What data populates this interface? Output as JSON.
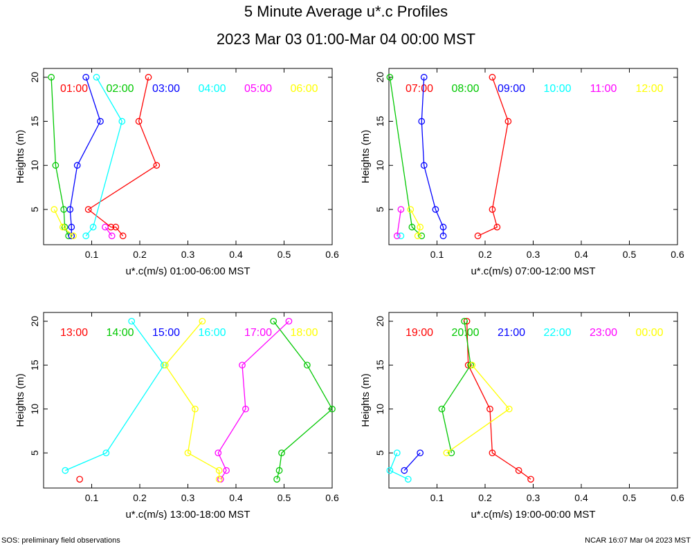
{
  "header": {
    "title": "5 Minute Average u*.c Profiles",
    "subtitle": "2023 Mar 03 01:00-Mar 04 00:00 MST"
  },
  "footer": {
    "left": "SOS: preliminary field observations",
    "right": "NCAR 16:07 Mar 04 2023 MST"
  },
  "colors": [
    "#ff0000",
    "#00c800",
    "#0000ff",
    "#00ffff",
    "#ff00ff",
    "#ffff00"
  ],
  "chart_data": [
    {
      "type": "line",
      "xlabel": "u*.c(m/s) 01:00-06:00 MST",
      "ylabel": "Heights (m)",
      "xlim": [
        0,
        0.6
      ],
      "ylim": [
        1,
        21
      ],
      "xticks": [
        0.1,
        0.2,
        0.3,
        0.4,
        0.5,
        0.6
      ],
      "xtick_labels": [
        "0.1",
        "0.2",
        "0.3",
        "0.4",
        "0.5",
        "0.6"
      ],
      "yticks": [
        5,
        10,
        15,
        20
      ],
      "ytick_labels": [
        "5",
        "10",
        "15",
        "20"
      ],
      "series": [
        {
          "name": "01:00",
          "points": [
            [
              0.165,
              2
            ],
            [
              0.15,
              3
            ],
            [
              0.14,
              3
            ],
            [
              0.093,
              5
            ],
            [
              0.235,
              10
            ],
            [
              0.198,
              15
            ],
            [
              0.218,
              20
            ]
          ]
        },
        {
          "name": "02:00",
          "points": [
            [
              0.052,
              2
            ],
            [
              0.044,
              3
            ],
            [
              0.042,
              5
            ],
            [
              0.025,
              10
            ],
            [
              0.016,
              20
            ]
          ]
        },
        {
          "name": "03:00",
          "points": [
            [
              0.058,
              2
            ],
            [
              0.058,
              3
            ],
            [
              0.055,
              5
            ],
            [
              0.07,
              10
            ],
            [
              0.118,
              15
            ],
            [
              0.088,
              20
            ]
          ]
        },
        {
          "name": "04:00",
          "points": [
            [
              0.088,
              2
            ],
            [
              0.103,
              3
            ],
            [
              0.163,
              15
            ],
            [
              0.11,
              20
            ]
          ]
        },
        {
          "name": "05:00",
          "points": [
            [
              0.142,
              2
            ],
            [
              0.128,
              3
            ]
          ]
        },
        {
          "name": "06:00",
          "points": [
            [
              0.062,
              2
            ],
            [
              0.04,
              3
            ],
            [
              0.022,
              5
            ]
          ]
        }
      ]
    },
    {
      "type": "line",
      "xlabel": "u*.c(m/s) 07:00-12:00 MST",
      "ylabel": "Heights (m)",
      "xlim": [
        0,
        0.6
      ],
      "ylim": [
        1,
        21
      ],
      "xticks": [
        0.1,
        0.2,
        0.3,
        0.4,
        0.5,
        0.6
      ],
      "xtick_labels": [
        "0.1",
        "0.2",
        "0.3",
        "0.4",
        "0.5",
        "0.6"
      ],
      "yticks": [
        5,
        10,
        15,
        20
      ],
      "ytick_labels": [
        "5",
        "10",
        "15",
        "20"
      ],
      "series": [
        {
          "name": "07:00",
          "points": [
            [
              0.185,
              2
            ],
            [
              0.225,
              3
            ],
            [
              0.215,
              5
            ],
            [
              0.248,
              15
            ],
            [
              0.215,
              20
            ]
          ]
        },
        {
          "name": "08:00",
          "points": [
            [
              0.068,
              2
            ],
            [
              0.048,
              3
            ],
            [
              0.002,
              20
            ]
          ]
        },
        {
          "name": "09:00",
          "points": [
            [
              0.113,
              2
            ],
            [
              0.113,
              3
            ],
            [
              0.097,
              5
            ],
            [
              0.073,
              10
            ],
            [
              0.068,
              15
            ],
            [
              0.073,
              20
            ]
          ]
        },
        {
          "name": "10:00",
          "points": [
            [
              0.025,
              2
            ]
          ]
        },
        {
          "name": "11:00",
          "points": [
            [
              0.017,
              2
            ],
            [
              0.025,
              5
            ]
          ]
        },
        {
          "name": "12:00",
          "points": [
            [
              0.06,
              2
            ],
            [
              0.065,
              3
            ],
            [
              0.045,
              5
            ]
          ]
        }
      ]
    },
    {
      "type": "line",
      "xlabel": "u*.c(m/s) 13:00-18:00 MST",
      "ylabel": "Heights (m)",
      "xlim": [
        0,
        0.6
      ],
      "ylim": [
        1,
        21
      ],
      "xticks": [
        0.1,
        0.2,
        0.3,
        0.4,
        0.5,
        0.6
      ],
      "xtick_labels": [
        "0.1",
        "0.2",
        "0.3",
        "0.4",
        "0.5",
        "0.6"
      ],
      "yticks": [
        5,
        10,
        15,
        20
      ],
      "ytick_labels": [
        "5",
        "10",
        "15",
        "20"
      ],
      "series": [
        {
          "name": "13:00",
          "points": [
            [
              0.075,
              2
            ]
          ]
        },
        {
          "name": "14:00",
          "points": [
            [
              0.485,
              2
            ],
            [
              0.49,
              3
            ],
            [
              0.495,
              5
            ],
            [
              0.6,
              10
            ],
            [
              0.548,
              15
            ],
            [
              0.478,
              20
            ]
          ]
        },
        {
          "name": "15:00",
          "points": []
        },
        {
          "name": "16:00",
          "points": [
            [
              0.045,
              3
            ],
            [
              0.13,
              5
            ],
            [
              0.25,
              15
            ],
            [
              0.183,
              20
            ]
          ]
        },
        {
          "name": "17:00",
          "points": [
            [
              0.368,
              2
            ],
            [
              0.38,
              3
            ],
            [
              0.363,
              5
            ],
            [
              0.42,
              10
            ],
            [
              0.413,
              15
            ],
            [
              0.51,
              20
            ]
          ]
        },
        {
          "name": "18:00",
          "points": [
            [
              0.365,
              2
            ],
            [
              0.365,
              3
            ],
            [
              0.3,
              5
            ],
            [
              0.315,
              10
            ],
            [
              0.253,
              15
            ],
            [
              0.33,
              20
            ]
          ]
        }
      ]
    },
    {
      "type": "line",
      "xlabel": "u*.c(m/s) 19:00-00:00 MST",
      "ylabel": "Heights (m)",
      "xlim": [
        0,
        0.6
      ],
      "ylim": [
        1,
        21
      ],
      "xticks": [
        0.1,
        0.2,
        0.3,
        0.4,
        0.5,
        0.6
      ],
      "xtick_labels": [
        "0.1",
        "0.2",
        "0.3",
        "0.4",
        "0.5",
        "0.6"
      ],
      "yticks": [
        5,
        10,
        15,
        20
      ],
      "ytick_labels": [
        "5",
        "10",
        "15",
        "20"
      ],
      "series": [
        {
          "name": "19:00",
          "points": [
            [
              0.295,
              2
            ],
            [
              0.27,
              3
            ],
            [
              0.215,
              5
            ],
            [
              0.21,
              10
            ],
            [
              0.165,
              15
            ],
            [
              0.162,
              20
            ]
          ]
        },
        {
          "name": "20:00",
          "points": [
            [
              0.13,
              5
            ],
            [
              0.11,
              10
            ],
            [
              0.17,
              15
            ],
            [
              0.157,
              20
            ]
          ]
        },
        {
          "name": "21:00",
          "points": [
            [
              0.032,
              3
            ],
            [
              0.065,
              5
            ]
          ]
        },
        {
          "name": "22:00",
          "points": [
            [
              0.04,
              2
            ],
            [
              0.002,
              3
            ],
            [
              0.017,
              5
            ]
          ]
        },
        {
          "name": "23:00",
          "points": []
        },
        {
          "name": "00:00",
          "points": [
            [
              0.12,
              5
            ],
            [
              0.25,
              10
            ],
            [
              0.173,
              15
            ]
          ]
        }
      ]
    }
  ]
}
